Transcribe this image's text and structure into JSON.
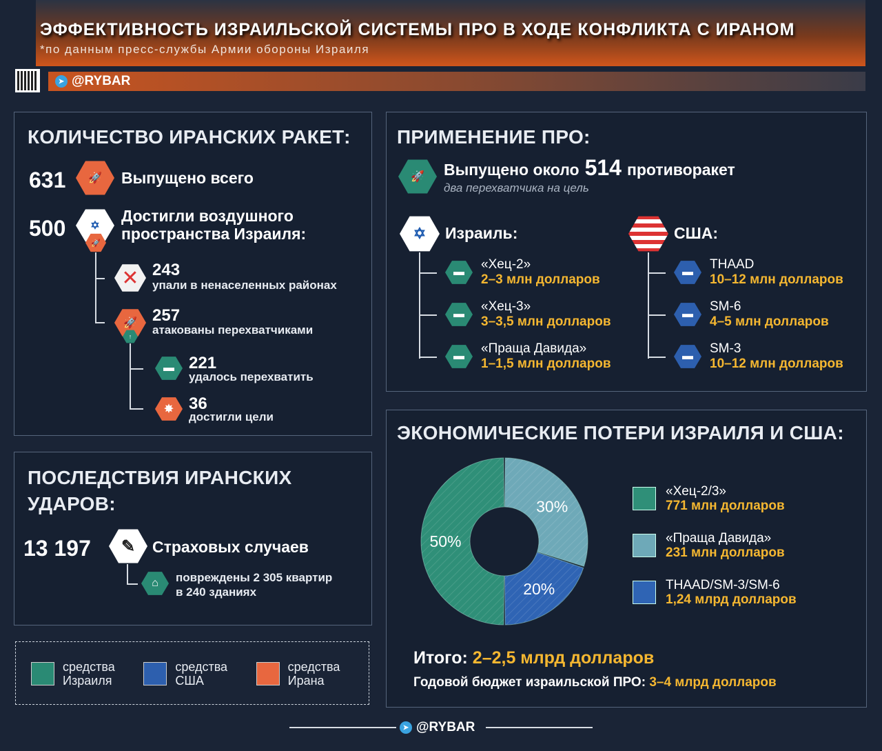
{
  "header": {
    "title": "ЭФФЕКТИВНОСТЬ ИЗРАИЛЬСКОЙ СИСТЕМЫ ПРО В ХОДЕ КОНФЛИКТА С ИРАНОМ",
    "subtitle": "*по данным пресс-службы Армии обороны Израиля",
    "brand": "@RYBAR"
  },
  "missiles": {
    "title": "КОЛИЧЕСТВО ИРАНСКИХ РАКЕТ:",
    "total": {
      "value": "631",
      "label": "Выпущено всего"
    },
    "reached": {
      "value": "500",
      "label1": "Достигли воздушного",
      "label2": "пространства Израиля:"
    },
    "fell": {
      "value": "243",
      "label": "упали в ненаселенных районах"
    },
    "attacked": {
      "value": "257",
      "label": "атакованы перехватчиками"
    },
    "intercepted": {
      "value": "221",
      "label": "удалось перехватить"
    },
    "hit": {
      "value": "36",
      "label": "достигли цели"
    }
  },
  "consequences": {
    "title1": "ПОСЛЕДСТВИЯ ИРАНСКИХ",
    "title2": "УДАРОВ:",
    "value": "13 197",
    "label": "Страховых случаев",
    "detail1": "повреждены 2 305 квартир",
    "detail2": "в 240 зданиях"
  },
  "legend": [
    {
      "l1": "средства",
      "l2": "Израиля",
      "color": "#2a8a74"
    },
    {
      "l1": "средства",
      "l2": "США",
      "color": "#2d5fae"
    },
    {
      "l1": "средства",
      "l2": "Ирана",
      "color": "#e8673f"
    }
  ],
  "pro": {
    "title": "ПРИМЕНЕНИЕ ПРО:",
    "launched_pre": "Выпущено около",
    "launched_value": "514",
    "launched_post": "противоракет",
    "note": "два перехватчика на цель",
    "israel": {
      "label": "Израиль:",
      "items": [
        {
          "name": "«Хец-2»",
          "cost": "2–3 млн долларов"
        },
        {
          "name": "«Хец-3»",
          "cost": "3–3,5 млн долларов"
        },
        {
          "name": "«Праща Давида»",
          "cost": "1–1,5 млн долларов"
        }
      ]
    },
    "usa": {
      "label": "США:",
      "items": [
        {
          "name": "THAAD",
          "cost": "10–12 млн долларов"
        },
        {
          "name": "SM-6",
          "cost": "4–5 млн долларов"
        },
        {
          "name": "SM-3",
          "cost": "10–12 млн долларов"
        }
      ]
    }
  },
  "economy": {
    "title": "ЭКОНОМИЧЕСКИЕ ПОТЕРИ ИЗРАИЛЯ И США:",
    "total_label": "Итого:",
    "total_value": "2–2,5 млрд долларов",
    "budget_label": "Годовой бюджет израильской ПРО:",
    "budget_value": "3–4 млрд долларов"
  },
  "chart_data": {
    "type": "pie",
    "donut": true,
    "categories": [
      "«Хец-2/3»",
      "«Праща Давида»",
      "THAAD/SM-3/SM-6"
    ],
    "values": [
      50,
      30,
      20
    ],
    "labels": [
      "50%",
      "30%",
      "20%"
    ],
    "amounts": [
      "771 млн долларов",
      "231 млн долларов",
      "1,24 млрд долларов"
    ],
    "colors": [
      "#2f8f78",
      "#6ea9b8",
      "#2f64b4"
    ],
    "legend": "right"
  },
  "footer": {
    "brand": "@RYBAR"
  }
}
